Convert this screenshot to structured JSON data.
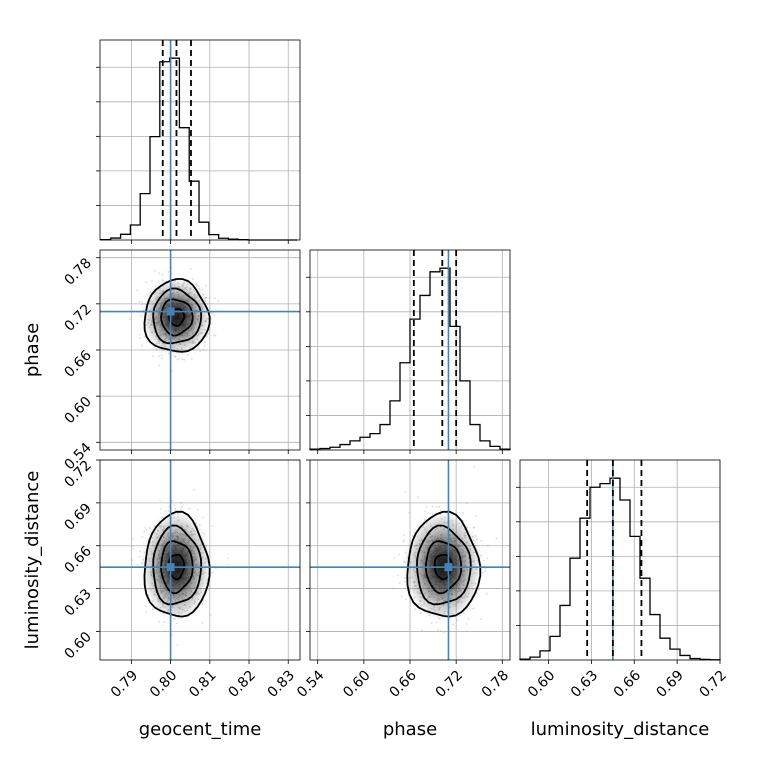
{
  "chart_data": {
    "type": "corner",
    "parameters": [
      {
        "name": "geocent_time",
        "label": "geocent_time",
        "range": [
          0.782,
          0.833
        ],
        "ticks": [
          0.79,
          0.8,
          0.81,
          0.82,
          0.83
        ],
        "tick_labels": [
          "0.79",
          "0.80",
          "0.81",
          "0.82",
          "0.83"
        ],
        "truth": 0.8,
        "quantiles": [
          0.798,
          0.8015,
          0.8052
        ],
        "mean": 0.8015,
        "sd": 0.0035,
        "hist_centers": [
          0.7835,
          0.786,
          0.7885,
          0.791,
          0.7935,
          0.796,
          0.7985,
          0.801,
          0.8035,
          0.806,
          0.8085,
          0.811,
          0.8135,
          0.816,
          0.8185,
          0.821,
          0.8235,
          0.826,
          0.8285,
          0.831
        ],
        "hist_counts": [
          0.2,
          1.1,
          3.2,
          8.4,
          26,
          58,
          100,
          102,
          63,
          33,
          10,
          3,
          1,
          0.5,
          0.2,
          0,
          0,
          0,
          0,
          0
        ]
      },
      {
        "name": "phase",
        "label": "phase",
        "range": [
          0.53,
          0.79
        ],
        "ticks": [
          0.54,
          0.6,
          0.66,
          0.72,
          0.78
        ],
        "tick_labels": [
          "0.54",
          "0.60",
          "0.66",
          "0.72",
          "0.78"
        ],
        "truth": 0.71,
        "quantiles": [
          0.665,
          0.702,
          0.72
        ],
        "mean": 0.703,
        "sd": 0.02,
        "hist_centers": [
          0.5365,
          0.5495,
          0.5625,
          0.5755,
          0.5885,
          0.6015,
          0.6145,
          0.6275,
          0.6405,
          0.6535,
          0.6665,
          0.6795,
          0.6925,
          0.7055,
          0.7185,
          0.7315,
          0.7445,
          0.7575,
          0.7705,
          0.7835
        ],
        "hist_counts": [
          0.5,
          0.8,
          1.5,
          3,
          5,
          7,
          9,
          14,
          27,
          48,
          72,
          85,
          98,
          100,
          68,
          38,
          14,
          5,
          2,
          0.5
        ]
      },
      {
        "name": "luminosity_distance",
        "label": "luminosity_distance",
        "range": [
          0.58,
          0.72
        ],
        "ticks": [
          0.6,
          0.63,
          0.66,
          0.69,
          0.72
        ],
        "tick_labels": [
          "0.60",
          "0.63",
          "0.66",
          "0.69",
          "0.72"
        ],
        "truth": 0.645,
        "quantiles": [
          0.627,
          0.645,
          0.665
        ],
        "mean": 0.6455,
        "sd": 0.0155,
        "hist_centers": [
          0.5835,
          0.5905,
          0.5975,
          0.6045,
          0.6115,
          0.6185,
          0.6255,
          0.6325,
          0.6395,
          0.6465,
          0.6535,
          0.6605,
          0.6675,
          0.6745,
          0.6815,
          0.6885,
          0.6955,
          0.7025,
          0.7095,
          0.7165
        ],
        "hist_counts": [
          0.5,
          1.6,
          5,
          13,
          30,
          56,
          78,
          95,
          97,
          100,
          88,
          68,
          45,
          25,
          12,
          6,
          2.5,
          0.8,
          0.3,
          0.1
        ]
      }
    ],
    "grid": true,
    "truth_color": "#4682b4",
    "contour_color": "#000000"
  }
}
